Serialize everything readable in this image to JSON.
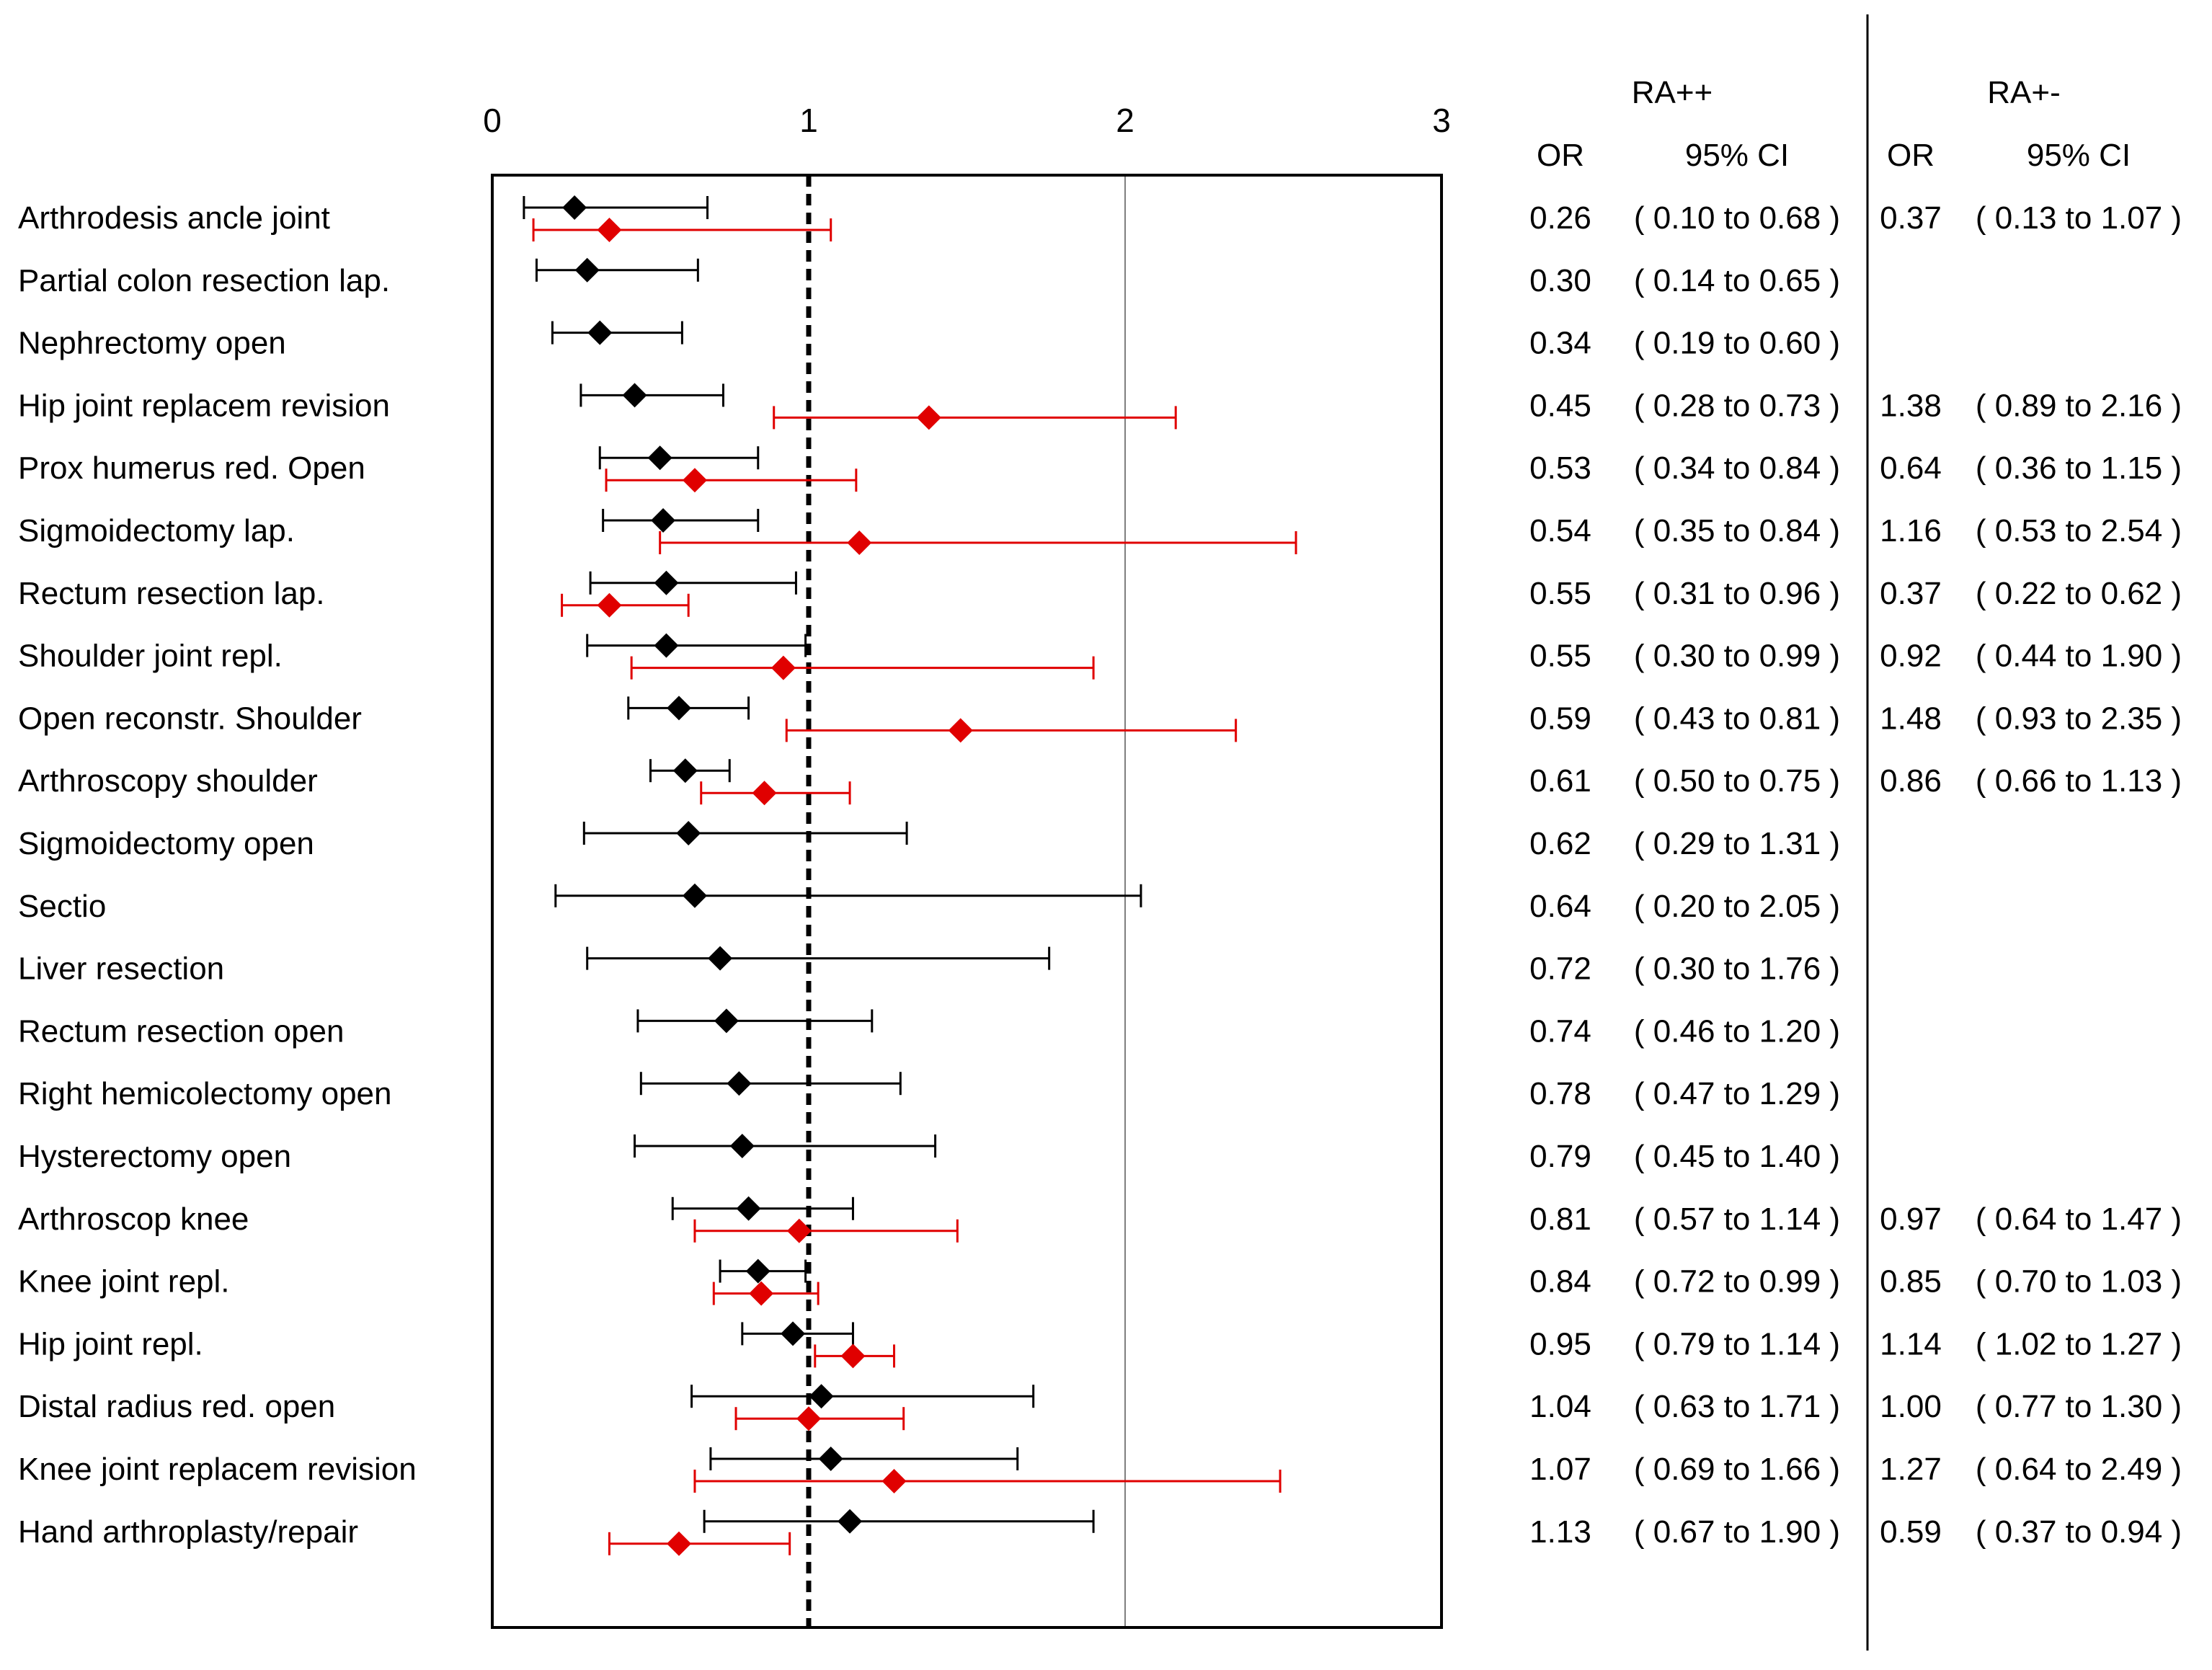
{
  "chart_data": {
    "type": "forest",
    "title": "",
    "xlabel": "",
    "ylabel": "",
    "xlim": [
      0,
      3
    ],
    "x_ticks": [
      "0",
      "1",
      "2",
      "3"
    ],
    "reference_line": 1,
    "grid": "vertical line at 2",
    "legend": "none",
    "colors": {
      "ra_pp": "#000000",
      "ra_pm": "#e00000"
    },
    "table": {
      "group_headers": [
        "RA++",
        "RA+-"
      ],
      "column_headers": [
        "OR",
        "95% CI",
        "OR",
        "95% CI"
      ]
    },
    "series": [
      {
        "key": "ra_pp",
        "header": "RA++"
      },
      {
        "key": "ra_pm",
        "header": "RA+-"
      }
    ],
    "rows": [
      {
        "label": "Arthrodesis ancle joint",
        "ra_pp": {
          "or": 0.26,
          "lo": 0.1,
          "hi": 0.68,
          "or_text": "0.26",
          "ci_text": "( 0.10 to 0.68 )"
        },
        "ra_pm": {
          "or": 0.37,
          "lo": 0.13,
          "hi": 1.07,
          "or_text": "0.37",
          "ci_text": "( 0.13 to 1.07 )"
        }
      },
      {
        "label": "Partial colon resection lap.",
        "ra_pp": {
          "or": 0.3,
          "lo": 0.14,
          "hi": 0.65,
          "or_text": "0.30",
          "ci_text": "( 0.14 to 0.65 )"
        },
        "ra_pm": null
      },
      {
        "label": "Nephrectomy open",
        "ra_pp": {
          "or": 0.34,
          "lo": 0.19,
          "hi": 0.6,
          "or_text": "0.34",
          "ci_text": "( 0.19 to 0.60 )"
        },
        "ra_pm": null
      },
      {
        "label": "Hip joint replacem revision",
        "ra_pp": {
          "or": 0.45,
          "lo": 0.28,
          "hi": 0.73,
          "or_text": "0.45",
          "ci_text": "( 0.28 to 0.73 )"
        },
        "ra_pm": {
          "or": 1.38,
          "lo": 0.89,
          "hi": 2.16,
          "or_text": "1.38",
          "ci_text": "( 0.89 to 2.16 )"
        }
      },
      {
        "label": "Prox humerus red. Open",
        "ra_pp": {
          "or": 0.53,
          "lo": 0.34,
          "hi": 0.84,
          "or_text": "0.53",
          "ci_text": "( 0.34 to 0.84 )"
        },
        "ra_pm": {
          "or": 0.64,
          "lo": 0.36,
          "hi": 1.15,
          "or_text": "0.64",
          "ci_text": "( 0.36 to 1.15 )"
        }
      },
      {
        "label": "Sigmoidectomy lap.",
        "ra_pp": {
          "or": 0.54,
          "lo": 0.35,
          "hi": 0.84,
          "or_text": "0.54",
          "ci_text": "( 0.35 to 0.84 )"
        },
        "ra_pm": {
          "or": 1.16,
          "lo": 0.53,
          "hi": 2.54,
          "or_text": "1.16",
          "ci_text": "( 0.53 to 2.54 )"
        }
      },
      {
        "label": "Rectum resection lap.",
        "ra_pp": {
          "or": 0.55,
          "lo": 0.31,
          "hi": 0.96,
          "or_text": "0.55",
          "ci_text": "( 0.31 to 0.96 )"
        },
        "ra_pm": {
          "or": 0.37,
          "lo": 0.22,
          "hi": 0.62,
          "or_text": "0.37",
          "ci_text": "( 0.22 to 0.62 )"
        }
      },
      {
        "label": "Shoulder joint repl.",
        "ra_pp": {
          "or": 0.55,
          "lo": 0.3,
          "hi": 0.99,
          "or_text": "0.55",
          "ci_text": "( 0.30 to 0.99 )"
        },
        "ra_pm": {
          "or": 0.92,
          "lo": 0.44,
          "hi": 1.9,
          "or_text": "0.92",
          "ci_text": "( 0.44 to 1.90 )"
        }
      },
      {
        "label": "Open reconstr. Shoulder",
        "ra_pp": {
          "or": 0.59,
          "lo": 0.43,
          "hi": 0.81,
          "or_text": "0.59",
          "ci_text": "( 0.43 to 0.81 )"
        },
        "ra_pm": {
          "or": 1.48,
          "lo": 0.93,
          "hi": 2.35,
          "or_text": "1.48",
          "ci_text": "( 0.93 to 2.35 )"
        }
      },
      {
        "label": "Arthroscopy shoulder",
        "ra_pp": {
          "or": 0.61,
          "lo": 0.5,
          "hi": 0.75,
          "or_text": "0.61",
          "ci_text": "( 0.50 to 0.75 )"
        },
        "ra_pm": {
          "or": 0.86,
          "lo": 0.66,
          "hi": 1.13,
          "or_text": "0.86",
          "ci_text": "( 0.66 to 1.13 )"
        }
      },
      {
        "label": "Sigmoidectomy open",
        "ra_pp": {
          "or": 0.62,
          "lo": 0.29,
          "hi": 1.31,
          "or_text": "0.62",
          "ci_text": "( 0.29 to 1.31 )"
        },
        "ra_pm": null
      },
      {
        "label": "Sectio",
        "ra_pp": {
          "or": 0.64,
          "lo": 0.2,
          "hi": 2.05,
          "or_text": "0.64",
          "ci_text": "( 0.20 to 2.05 )"
        },
        "ra_pm": null
      },
      {
        "label": "Liver resection",
        "ra_pp": {
          "or": 0.72,
          "lo": 0.3,
          "hi": 1.76,
          "or_text": "0.72",
          "ci_text": "( 0.30 to 1.76 )"
        },
        "ra_pm": null
      },
      {
        "label": "Rectum resection open",
        "ra_pp": {
          "or": 0.74,
          "lo": 0.46,
          "hi": 1.2,
          "or_text": "0.74",
          "ci_text": "( 0.46 to 1.20 )"
        },
        "ra_pm": null
      },
      {
        "label": "Right hemicolectomy open",
        "ra_pp": {
          "or": 0.78,
          "lo": 0.47,
          "hi": 1.29,
          "or_text": "0.78",
          "ci_text": "( 0.47 to 1.29 )"
        },
        "ra_pm": null
      },
      {
        "label": "Hysterectomy open",
        "ra_pp": {
          "or": 0.79,
          "lo": 0.45,
          "hi": 1.4,
          "or_text": "0.79",
          "ci_text": "( 0.45 to 1.40 )"
        },
        "ra_pm": null
      },
      {
        "label": "Arthroscop knee",
        "ra_pp": {
          "or": 0.81,
          "lo": 0.57,
          "hi": 1.14,
          "or_text": "0.81",
          "ci_text": "( 0.57 to 1.14 )"
        },
        "ra_pm": {
          "or": 0.97,
          "lo": 0.64,
          "hi": 1.47,
          "or_text": "0.97",
          "ci_text": "( 0.64 to 1.47 )"
        }
      },
      {
        "label": "Knee joint repl.",
        "ra_pp": {
          "or": 0.84,
          "lo": 0.72,
          "hi": 0.99,
          "or_text": "0.84",
          "ci_text": "( 0.72 to 0.99 )"
        },
        "ra_pm": {
          "or": 0.85,
          "lo": 0.7,
          "hi": 1.03,
          "or_text": "0.85",
          "ci_text": "( 0.70 to 1.03 )"
        }
      },
      {
        "label": "Hip joint repl.",
        "ra_pp": {
          "or": 0.95,
          "lo": 0.79,
          "hi": 1.14,
          "or_text": "0.95",
          "ci_text": "( 0.79 to 1.14 )"
        },
        "ra_pm": {
          "or": 1.14,
          "lo": 1.02,
          "hi": 1.27,
          "or_text": "1.14",
          "ci_text": "( 1.02 to 1.27 )"
        }
      },
      {
        "label": "Distal radius red. open",
        "ra_pp": {
          "or": 1.04,
          "lo": 0.63,
          "hi": 1.71,
          "or_text": "1.04",
          "ci_text": "( 0.63 to 1.71 )"
        },
        "ra_pm": {
          "or": 1.0,
          "lo": 0.77,
          "hi": 1.3,
          "or_text": "1.00",
          "ci_text": "( 0.77 to 1.30 )"
        }
      },
      {
        "label": "Knee joint replacem revision",
        "ra_pp": {
          "or": 1.07,
          "lo": 0.69,
          "hi": 1.66,
          "or_text": "1.07",
          "ci_text": "( 0.69 to 1.66 )"
        },
        "ra_pm": {
          "or": 1.27,
          "lo": 0.64,
          "hi": 2.49,
          "or_text": "1.27",
          "ci_text": "( 0.64 to 2.49 )"
        }
      },
      {
        "label": "Hand arthroplasty/repair",
        "ra_pp": {
          "or": 1.13,
          "lo": 0.67,
          "hi": 1.9,
          "or_text": "1.13",
          "ci_text": "( 0.67 to 1.90 )"
        },
        "ra_pm": {
          "or": 0.59,
          "lo": 0.37,
          "hi": 0.94,
          "or_text": "0.59",
          "ci_text": "( 0.37 to 0.94 )"
        }
      }
    ]
  }
}
